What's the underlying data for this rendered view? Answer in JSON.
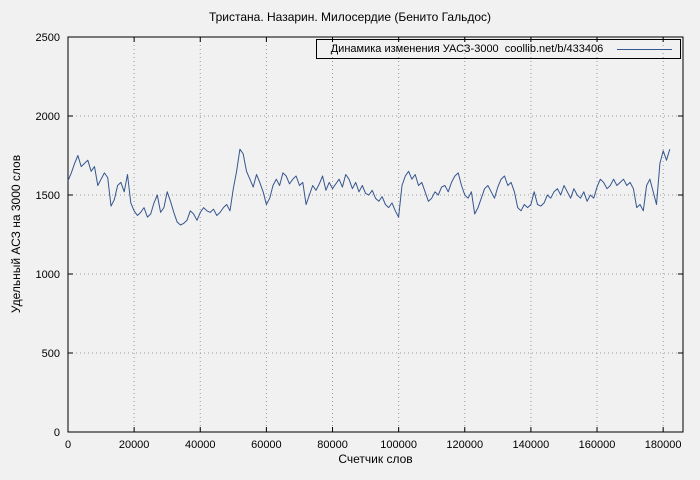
{
  "chart_data": {
    "type": "line",
    "title": "Тристана. Назарин. Милосердие (Бенито Гальдос)",
    "xlabel": "Счетчик слов",
    "ylabel": "Удельный АСЗ на 3000 слов",
    "legend": {
      "label": "Динамика изменения УАСЗ-3000  coollib.net/b/433406",
      "position": "top-right"
    },
    "xlim": [
      0,
      186000
    ],
    "ylim": [
      0,
      2500
    ],
    "x_ticks": [
      0,
      20000,
      40000,
      60000,
      80000,
      100000,
      120000,
      140000,
      160000,
      180000
    ],
    "y_ticks": [
      0,
      500,
      1000,
      1500,
      2000,
      2500
    ],
    "grid": true,
    "x_step": 1000,
    "values": [
      1590,
      1640,
      1700,
      1750,
      1680,
      1700,
      1720,
      1650,
      1680,
      1560,
      1600,
      1640,
      1610,
      1430,
      1470,
      1560,
      1580,
      1520,
      1630,
      1450,
      1400,
      1370,
      1390,
      1420,
      1360,
      1380,
      1450,
      1500,
      1390,
      1420,
      1520,
      1460,
      1390,
      1330,
      1310,
      1320,
      1340,
      1400,
      1380,
      1340,
      1390,
      1420,
      1400,
      1390,
      1410,
      1370,
      1390,
      1420,
      1440,
      1400,
      1540,
      1650,
      1790,
      1760,
      1650,
      1600,
      1550,
      1630,
      1580,
      1520,
      1440,
      1480,
      1560,
      1600,
      1560,
      1640,
      1620,
      1570,
      1600,
      1620,
      1560,
      1580,
      1440,
      1500,
      1560,
      1530,
      1570,
      1620,
      1530,
      1580,
      1540,
      1570,
      1600,
      1550,
      1630,
      1600,
      1540,
      1580,
      1520,
      1560,
      1510,
      1500,
      1530,
      1480,
      1460,
      1490,
      1440,
      1420,
      1450,
      1400,
      1360,
      1560,
      1620,
      1650,
      1600,
      1630,
      1560,
      1580,
      1520,
      1460,
      1480,
      1520,
      1500,
      1550,
      1560,
      1520,
      1580,
      1620,
      1640,
      1560,
      1500,
      1480,
      1520,
      1380,
      1420,
      1480,
      1540,
      1560,
      1520,
      1480,
      1550,
      1600,
      1620,
      1560,
      1580,
      1520,
      1420,
      1400,
      1440,
      1420,
      1440,
      1520,
      1440,
      1430,
      1450,
      1500,
      1480,
      1520,
      1540,
      1500,
      1560,
      1520,
      1480,
      1540,
      1500,
      1480,
      1520,
      1460,
      1500,
      1480,
      1550,
      1600,
      1580,
      1540,
      1560,
      1600,
      1560,
      1580,
      1600,
      1560,
      1580,
      1540,
      1420,
      1440,
      1400,
      1560,
      1600,
      1520,
      1440,
      1700,
      1780,
      1720,
      1790
    ]
  },
  "colors": {
    "background": "#f1f1f1",
    "line": "#35568f",
    "grid": "#9a9a9a",
    "axis": "#000000"
  }
}
